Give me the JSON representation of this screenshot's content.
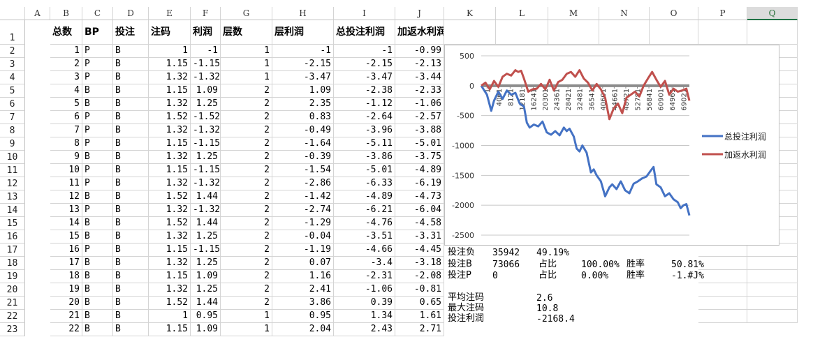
{
  "columns": [
    "A",
    "B",
    "C",
    "D",
    "E",
    "F",
    "G",
    "H",
    "I",
    "J",
    "K",
    "L",
    "M",
    "N",
    "O",
    "P",
    "Q"
  ],
  "selected_column": "Q",
  "header_row": {
    "row": "1",
    "cells": [
      "总数",
      "BP",
      "投注",
      "注码",
      "利润",
      "层数",
      "层利润",
      "总投注利润",
      "加返水利润"
    ]
  },
  "rows": [
    {
      "n": "2",
      "a": "1",
      "b": "P",
      "c": "B",
      "d": "1",
      "e": "-1",
      "f": "1",
      "g": "-1",
      "h": "-1",
      "i": "-0.99"
    },
    {
      "n": "3",
      "a": "2",
      "b": "P",
      "c": "B",
      "d": "1.15",
      "e": "-1.15",
      "f": "1",
      "g": "-2.15",
      "h": "-2.15",
      "i": "-2.13"
    },
    {
      "n": "4",
      "a": "3",
      "b": "P",
      "c": "B",
      "d": "1.32",
      "e": "-1.32",
      "f": "1",
      "g": "-3.47",
      "h": "-3.47",
      "i": "-3.44"
    },
    {
      "n": "5",
      "a": "4",
      "b": "B",
      "c": "B",
      "d": "1.15",
      "e": "1.09",
      "f": "2",
      "g": "1.09",
      "h": "-2.38",
      "i": "-2.33"
    },
    {
      "n": "6",
      "a": "5",
      "b": "B",
      "c": "B",
      "d": "1.32",
      "e": "1.25",
      "f": "2",
      "g": "2.35",
      "h": "-1.12",
      "i": "-1.06"
    },
    {
      "n": "7",
      "a": "6",
      "b": "P",
      "c": "B",
      "d": "1.52",
      "e": "-1.52",
      "f": "2",
      "g": "0.83",
      "h": "-2.64",
      "i": "-2.57"
    },
    {
      "n": "8",
      "a": "7",
      "b": "P",
      "c": "B",
      "d": "1.32",
      "e": "-1.32",
      "f": "2",
      "g": "-0.49",
      "h": "-3.96",
      "i": "-3.88"
    },
    {
      "n": "9",
      "a": "8",
      "b": "P",
      "c": "B",
      "d": "1.15",
      "e": "-1.15",
      "f": "2",
      "g": "-1.64",
      "h": "-5.11",
      "i": "-5.01"
    },
    {
      "n": "10",
      "a": "9",
      "b": "B",
      "c": "B",
      "d": "1.32",
      "e": "1.25",
      "f": "2",
      "g": "-0.39",
      "h": "-3.86",
      "i": "-3.75"
    },
    {
      "n": "11",
      "a": "10",
      "b": "P",
      "c": "B",
      "d": "1.15",
      "e": "-1.15",
      "f": "2",
      "g": "-1.54",
      "h": "-5.01",
      "i": "-4.89"
    },
    {
      "n": "12",
      "a": "11",
      "b": "P",
      "c": "B",
      "d": "1.32",
      "e": "-1.32",
      "f": "2",
      "g": "-2.86",
      "h": "-6.33",
      "i": "-6.19"
    },
    {
      "n": "13",
      "a": "12",
      "b": "B",
      "c": "B",
      "d": "1.52",
      "e": "1.44",
      "f": "2",
      "g": "-1.42",
      "h": "-4.89",
      "i": "-4.73"
    },
    {
      "n": "14",
      "a": "13",
      "b": "P",
      "c": "B",
      "d": "1.32",
      "e": "-1.32",
      "f": "2",
      "g": "-2.74",
      "h": "-6.21",
      "i": "-6.04"
    },
    {
      "n": "15",
      "a": "14",
      "b": "B",
      "c": "B",
      "d": "1.52",
      "e": "1.44",
      "f": "2",
      "g": "-1.29",
      "h": "-4.76",
      "i": "-4.58"
    },
    {
      "n": "16",
      "a": "15",
      "b": "B",
      "c": "B",
      "d": "1.32",
      "e": "1.25",
      "f": "2",
      "g": "-0.04",
      "h": "-3.51",
      "i": "-3.31"
    },
    {
      "n": "17",
      "a": "16",
      "b": "P",
      "c": "B",
      "d": "1.15",
      "e": "-1.15",
      "f": "2",
      "g": "-1.19",
      "h": "-4.66",
      "i": "-4.45"
    },
    {
      "n": "18",
      "a": "17",
      "b": "B",
      "c": "B",
      "d": "1.32",
      "e": "1.25",
      "f": "2",
      "g": "0.07",
      "h": "-3.4",
      "i": "-3.18"
    },
    {
      "n": "19",
      "a": "18",
      "b": "B",
      "c": "B",
      "d": "1.15",
      "e": "1.09",
      "f": "2",
      "g": "1.16",
      "h": "-2.31",
      "i": "-2.08"
    },
    {
      "n": "20",
      "a": "19",
      "b": "B",
      "c": "B",
      "d": "1.32",
      "e": "1.25",
      "f": "2",
      "g": "2.41",
      "h": "-1.06",
      "i": "-0.81"
    },
    {
      "n": "21",
      "a": "20",
      "b": "B",
      "c": "B",
      "d": "1.52",
      "e": "1.44",
      "f": "2",
      "g": "3.86",
      "h": "0.39",
      "i": "0.65"
    },
    {
      "n": "22",
      "a": "21",
      "b": "B",
      "c": "B",
      "d": "1",
      "e": "0.95",
      "f": "1",
      "g": "0.95",
      "h": "1.34",
      "i": "1.61"
    },
    {
      "n": "23",
      "a": "22",
      "b": "B",
      "c": "B",
      "d": "1.15",
      "e": "1.09",
      "f": "1",
      "g": "2.04",
      "h": "2.43",
      "i": "2.71"
    }
  ],
  "stats": {
    "bet_loss_label": "投注负",
    "bet_loss_count": "35942",
    "bet_loss_pct": "49.19%",
    "bet_b_label": "投注B",
    "bet_b_count": "73066",
    "ratio_label_1": "占比",
    "bet_b_ratio": "100.00%",
    "win_label_1": "胜率",
    "bet_b_win": "50.81%",
    "bet_p_label": "投注P",
    "bet_p_count": "0",
    "ratio_label_2": "占比",
    "bet_p_ratio": "0.00%",
    "win_label_2": "胜率",
    "bet_p_win": "-1.#J%",
    "avg_label": "平均注码",
    "avg_value": "2.6",
    "max_label": "最大注码",
    "max_value": "10.8",
    "profit_label": "投注利润",
    "profit_value": "-2168.4"
  },
  "chart_data": {
    "type": "line",
    "title": "",
    "xlabel": "",
    "ylabel": "",
    "ylim": [
      -2500,
      500
    ],
    "y_ticks": [
      "500",
      "0",
      "-500",
      "-1000",
      "-1500",
      "-2000",
      "-2500"
    ],
    "x_tick_labels": [
      "1",
      "4061",
      "8121",
      "12181",
      "16241",
      "20301",
      "24361",
      "28421",
      "32481",
      "36541",
      "40601",
      "44661",
      "48721",
      "52781",
      "56841",
      "60901",
      "64961",
      "69021"
    ],
    "x_max": 73066,
    "legend_position": "right",
    "grid": true,
    "series": [
      {
        "name": "总投注利润",
        "color": "#4472C4",
        "x": [
          1,
          2000,
          3500,
          4500,
          6000,
          7500,
          9000,
          10500,
          12000,
          13500,
          15000,
          16000,
          17000,
          18500,
          20000,
          21500,
          23000,
          24500,
          26000,
          27500,
          29000,
          30000,
          31000,
          32500,
          33500,
          34500,
          35500,
          37000,
          38500,
          39500,
          40500,
          42000,
          43500,
          45000,
          46000,
          47500,
          49000,
          50500,
          52000,
          53500,
          55000,
          56500,
          58000,
          59500,
          60500,
          61500,
          63000,
          64500,
          66000,
          67500,
          69000,
          70000,
          71000,
          72000,
          73066
        ],
        "y": [
          0,
          -150,
          -420,
          -250,
          -100,
          -220,
          -80,
          -150,
          -120,
          -300,
          -350,
          -620,
          -700,
          -650,
          -680,
          -600,
          -780,
          -820,
          -760,
          -830,
          -700,
          -760,
          -720,
          -850,
          -1050,
          -1100,
          -1000,
          -1120,
          -1450,
          -1400,
          -1500,
          -1600,
          -1850,
          -1700,
          -1650,
          -1730,
          -1600,
          -1750,
          -1800,
          -1640,
          -1600,
          -1550,
          -1520,
          -1420,
          -1360,
          -1650,
          -1700,
          -1850,
          -1800,
          -1900,
          -1950,
          -2050,
          -2000,
          -1980,
          -2170
        ]
      },
      {
        "name": "加返水利润",
        "color": "#C0504D",
        "x": [
          1,
          1500,
          3000,
          4500,
          6000,
          7500,
          9000,
          10500,
          12000,
          13000,
          14000,
          15000,
          16500,
          18000,
          19500,
          21000,
          22500,
          24000,
          25500,
          27000,
          28500,
          30000,
          31500,
          33000,
          34500,
          36000,
          37500,
          39000,
          40500,
          42000,
          43500,
          45000,
          46500,
          48000,
          49500,
          51000,
          52500,
          54000,
          55500,
          57000,
          58500,
          60000,
          61500,
          63000,
          64500,
          66000,
          67500,
          69000,
          70500,
          72000,
          73066
        ],
        "y": [
          0,
          50,
          -60,
          80,
          -20,
          150,
          200,
          170,
          260,
          230,
          250,
          120,
          -100,
          -60,
          -50,
          30,
          -60,
          100,
          -80,
          60,
          100,
          200,
          230,
          150,
          260,
          120,
          50,
          -80,
          30,
          -60,
          -200,
          -560,
          -380,
          -300,
          -460,
          -200,
          -150,
          -100,
          -180,
          0,
          120,
          230,
          100,
          -20,
          80,
          -150,
          -50,
          -100,
          -80,
          -50,
          -250
        ]
      }
    ]
  }
}
